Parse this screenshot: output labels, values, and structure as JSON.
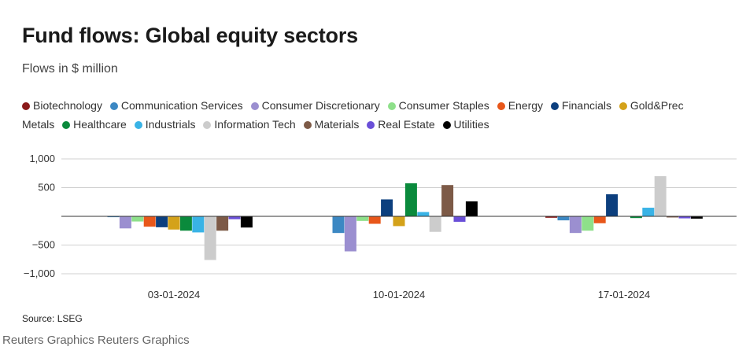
{
  "title": "Fund flows: Global equity sectors",
  "subtitle": "Flows in $ million",
  "source": "Source: LSEG",
  "credit": "Reuters Graphics Reuters Graphics",
  "chart_data": {
    "type": "bar",
    "categories": [
      "03-01-2024",
      "10-01-2024",
      "17-01-2024"
    ],
    "series": [
      {
        "name": "Biotechnology",
        "color": "#8b1a1a",
        "values": [
          5,
          0,
          -25
        ]
      },
      {
        "name": "Communication Services",
        "color": "#3c88c3",
        "values": [
          -15,
          -290,
          -70
        ]
      },
      {
        "name": "Consumer Discretionary",
        "color": "#9b8fd0",
        "values": [
          -210,
          -610,
          -290
        ]
      },
      {
        "name": "Consumer Staples",
        "color": "#8ee08a",
        "values": [
          -90,
          -80,
          -250
        ]
      },
      {
        "name": "Energy",
        "color": "#e8571a",
        "values": [
          -180,
          -130,
          -120
        ]
      },
      {
        "name": "Financials",
        "color": "#0c3f7e",
        "values": [
          -190,
          295,
          385
        ]
      },
      {
        "name": "Gold&Prec Metals",
        "color": "#d4a21a",
        "values": [
          -230,
          -170,
          0
        ]
      },
      {
        "name": "Healthcare",
        "color": "#0a8a3c",
        "values": [
          -250,
          575,
          -30
        ]
      },
      {
        "name": "Industrials",
        "color": "#39b3e6",
        "values": [
          -280,
          75,
          150
        ]
      },
      {
        "name": "Information Tech",
        "color": "#cccccc",
        "values": [
          -760,
          -270,
          700
        ]
      },
      {
        "name": "Materials",
        "color": "#7d5a47",
        "values": [
          -250,
          545,
          -20
        ]
      },
      {
        "name": "Real Estate",
        "color": "#6a4fd8",
        "values": [
          -50,
          -95,
          -35
        ]
      },
      {
        "name": "Utilities",
        "color": "#000000",
        "values": [
          -195,
          260,
          -40
        ]
      }
    ],
    "yticks": [
      1000,
      500,
      0,
      -500,
      -1000
    ],
    "ytick_labels": [
      "1,000",
      "500",
      "",
      "−500",
      "−1,000"
    ],
    "ylim": [
      -1000,
      1000
    ],
    "xlabel": "",
    "ylabel": "",
    "grid": true,
    "legend_position": "top"
  }
}
